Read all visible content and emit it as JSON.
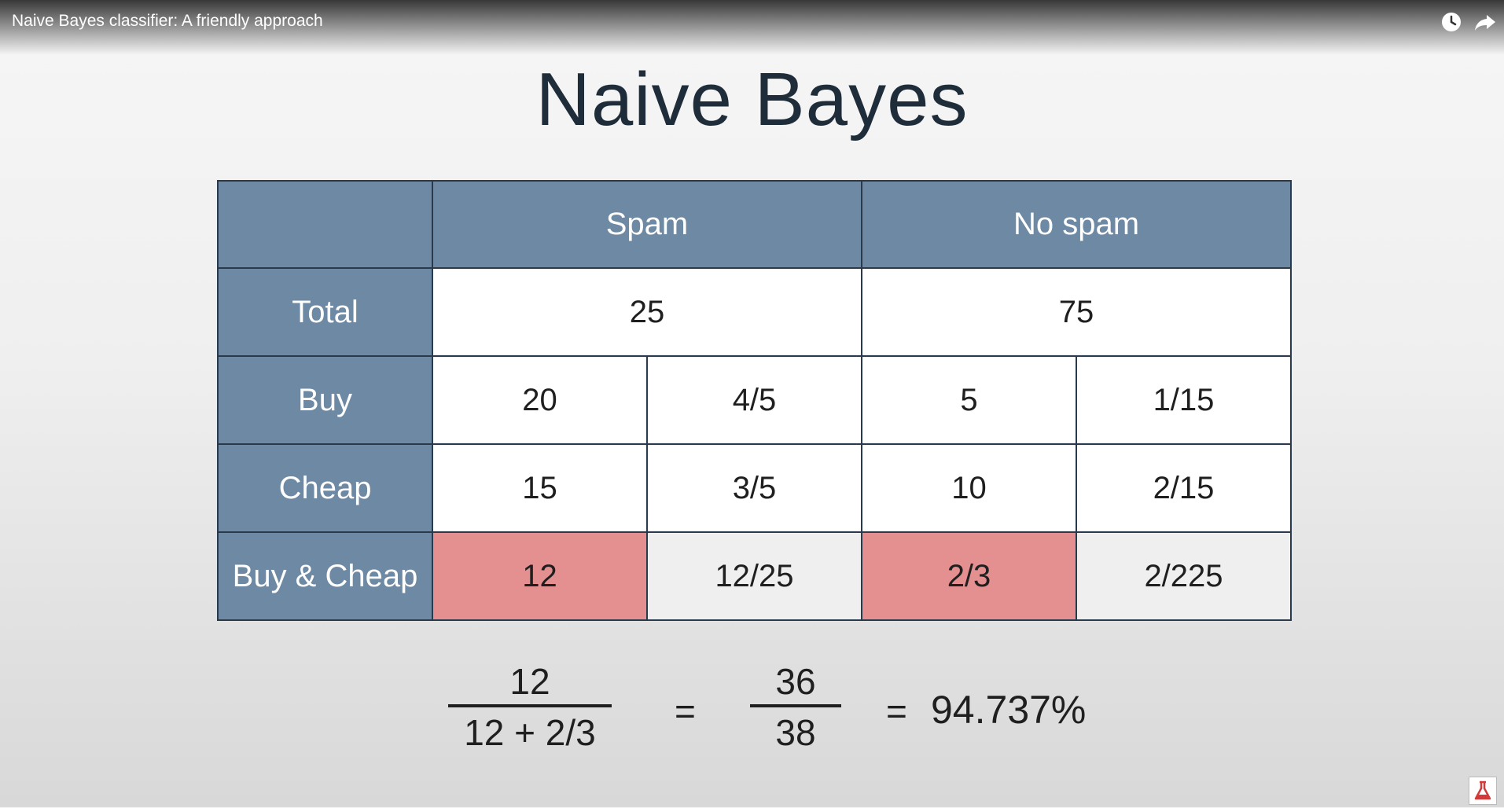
{
  "video": {
    "title": "Naive Bayes classifier: A friendly approach",
    "icons": [
      "clock-icon",
      "share-icon"
    ]
  },
  "slide": {
    "title": "Naive Bayes",
    "table": {
      "header": {
        "corner": "",
        "spam": "Spam",
        "no_spam": "No spam"
      },
      "rows": [
        {
          "label": "Total",
          "spam_total": "25",
          "no_spam_total": "75"
        },
        {
          "label": "Buy",
          "spam_count": "20",
          "spam_prob": "4/5",
          "no_spam_count": "5",
          "no_spam_prob": "1/15"
        },
        {
          "label": "Cheap",
          "spam_count": "15",
          "spam_prob": "3/5",
          "no_spam_count": "10",
          "no_spam_prob": "2/15"
        },
        {
          "label": "Buy & Cheap",
          "spam_count": "12",
          "spam_prob": "12/25",
          "no_spam_count": "2/3",
          "no_spam_prob": "2/225"
        }
      ],
      "highlight_color": "#e48f90",
      "header_color": "#6e89a3"
    },
    "formula": {
      "frac1_num": "12",
      "frac1_den": "12 + 2/3",
      "eq1": "=",
      "frac2_num": "36",
      "frac2_den": "38",
      "eq2": "=",
      "result": "94.737%"
    }
  }
}
